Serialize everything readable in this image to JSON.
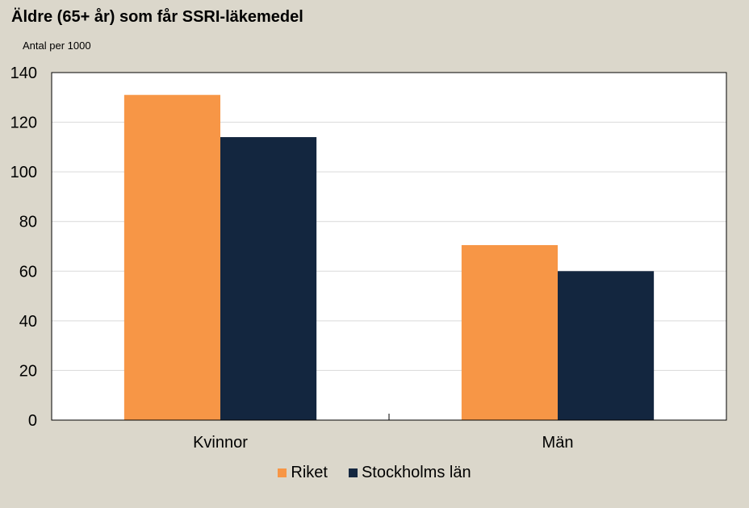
{
  "chart_data": {
    "type": "bar",
    "title": "Äldre (65+ år) som får SSRI-läkemedel",
    "ylabel": "Antal per 1000",
    "xlabel": "",
    "categories": [
      "Kvinnor",
      "Män"
    ],
    "series": [
      {
        "name": "Riket",
        "values": [
          131,
          70.5
        ],
        "color": "#f79646"
      },
      {
        "name": "Stockholms län",
        "values": [
          114,
          60
        ],
        "color": "#13263f"
      }
    ],
    "ylim": [
      0,
      140
    ],
    "yticks": [
      "0",
      "20",
      "40",
      "60",
      "80",
      "100",
      "120",
      "140"
    ],
    "grid": true,
    "legend_position": "bottom"
  },
  "colors": {
    "background": "#dbd7cb",
    "plot_background": "#ffffff",
    "gridline": "#d9d9d9"
  }
}
